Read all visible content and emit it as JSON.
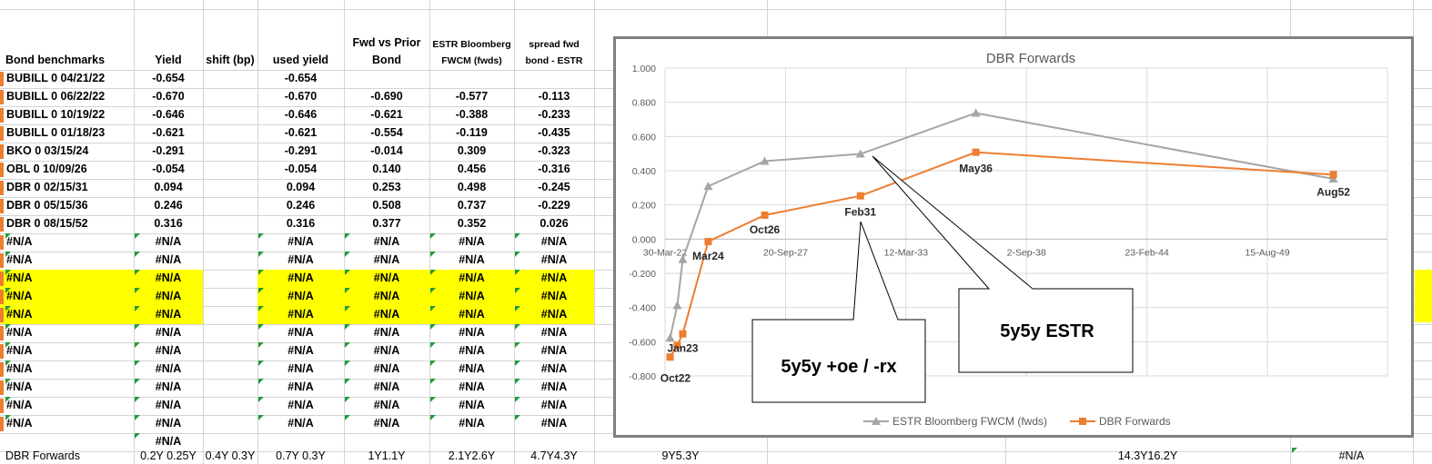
{
  "table": {
    "headers": {
      "bench": "Bond benchmarks",
      "yield": "Yield",
      "shift": "shift (bp)",
      "used": "used yield",
      "fwd_line1": "Fwd vs Prior",
      "fwd_line2": "Bond",
      "estr_line1": "ESTR Bloomberg",
      "estr_line2": "FWCM (fwds)",
      "spread_line1": "spread fwd",
      "spread_line2": "bond - ESTR"
    },
    "rows": [
      {
        "bench": "BUBILL 0 04/21/22",
        "yield": "-0.654",
        "shift": "",
        "used": "-0.654",
        "fwd": "",
        "estr": "",
        "spread": ""
      },
      {
        "bench": "BUBILL 0 06/22/22",
        "yield": "-0.670",
        "shift": "",
        "used": "-0.670",
        "fwd": "-0.690",
        "estr": "-0.577",
        "spread": "-0.113"
      },
      {
        "bench": "BUBILL 0 10/19/22",
        "yield": "-0.646",
        "shift": "",
        "used": "-0.646",
        "fwd": "-0.621",
        "estr": "-0.388",
        "spread": "-0.233"
      },
      {
        "bench": "BUBILL 0 01/18/23",
        "yield": "-0.621",
        "shift": "",
        "used": "-0.621",
        "fwd": "-0.554",
        "estr": "-0.119",
        "spread": "-0.435"
      },
      {
        "bench": "BKO 0 03/15/24",
        "yield": "-0.291",
        "shift": "",
        "used": "-0.291",
        "fwd": "-0.014",
        "estr": "0.309",
        "spread": "-0.323"
      },
      {
        "bench": "OBL 0 10/09/26",
        "yield": "-0.054",
        "shift": "",
        "used": "-0.054",
        "fwd": "0.140",
        "estr": "0.456",
        "spread": "-0.316"
      },
      {
        "bench": "DBR 0 02/15/31",
        "yield": "0.094",
        "shift": "",
        "used": "0.094",
        "fwd": "0.253",
        "estr": "0.498",
        "spread": "-0.245"
      },
      {
        "bench": "DBR 0 05/15/36",
        "yield": "0.246",
        "shift": "",
        "used": "0.246",
        "fwd": "0.508",
        "estr": "0.737",
        "spread": "-0.229"
      },
      {
        "bench": "DBR 0 08/15/52",
        "yield": "0.316",
        "shift": "",
        "used": "0.316",
        "fwd": "0.377",
        "estr": "0.352",
        "spread": "0.026"
      }
    ],
    "na": "#N/A",
    "na_row_count": 11,
    "last_yield_na": "#N/A",
    "bottom_row": {
      "label": "DBR Forwards",
      "c1": "0.2Y 0.25Y",
      "c2": "0.4Y 0.3Y",
      "c3": "0.7Y 0.3Y",
      "c4": "1Y1.1Y",
      "c5": "2.1Y2.6Y",
      "c6": "4.7Y4.3Y",
      "c7": "9Y5.3Y",
      "c8": "14.3Y16.2Y",
      "c9": "#N/A"
    }
  },
  "colors": {
    "estr": "#a5a5a5",
    "dbr": "#ed7d31",
    "highlight": "#ffff00",
    "frame": "#7f7f7f"
  },
  "chart_data": {
    "type": "line",
    "title": "DBR Forwards",
    "ylim": [
      -0.8,
      1.0
    ],
    "y_ticks": [
      "1.000",
      "0.800",
      "0.600",
      "0.400",
      "0.200",
      "0.000",
      "-0.200",
      "-0.400",
      "-0.600",
      "-0.800"
    ],
    "x_ticks": [
      "30-Mar-22",
      "20-Sep-27",
      "12-Mar-33",
      "2-Sep-38",
      "23-Feb-44",
      "15-Aug-49"
    ],
    "x_range": [
      "2022-03-30",
      "2055-01-29"
    ],
    "series": [
      {
        "name": "ESTR Bloomberg FWCM (fwds)",
        "x": [
          "2022-06-22",
          "2022-10-19",
          "2023-01-18",
          "2024-03-15",
          "2026-10-09",
          "2031-02-15",
          "2036-05-15",
          "2052-08-15"
        ],
        "values": [
          -0.577,
          -0.388,
          -0.119,
          0.309,
          0.456,
          0.498,
          0.737,
          0.352
        ]
      },
      {
        "name": "DBR Forwards",
        "x": [
          "2022-06-22",
          "2022-10-19",
          "2023-01-18",
          "2024-03-15",
          "2026-10-09",
          "2031-02-15",
          "2036-05-15",
          "2052-08-15"
        ],
        "values": [
          -0.69,
          -0.621,
          -0.554,
          -0.014,
          0.14,
          0.253,
          0.508,
          0.377
        ]
      }
    ],
    "point_labels": [
      "Jan23",
      "Oct22",
      "Mar24",
      "Oct26",
      "Feb31",
      "May36",
      "Aug52"
    ],
    "callouts": [
      "5y5y +oe / -rx",
      "5y5y ESTR"
    ],
    "legend_position": "bottom"
  }
}
